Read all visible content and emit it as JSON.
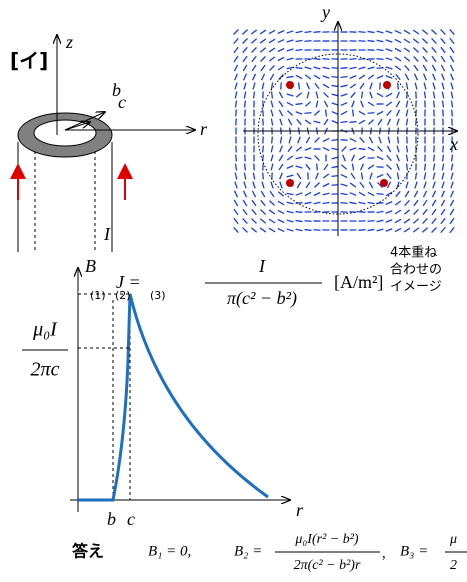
{
  "label": "[イ]",
  "cylinder": {
    "z_axis": "z",
    "r_axis": "r",
    "inner_radius": "b",
    "outer_radius": "c",
    "current": "I"
  },
  "vector_field": {
    "x_axis": "x",
    "y_axis": "y",
    "note": [
      "4本重ね",
      "合わせの",
      "イメージ"
    ]
  },
  "current_density": {
    "lhs": "J =",
    "numerator": "I",
    "denominator": "π(c² − b²)",
    "unit": "[A/m²]"
  },
  "graph": {
    "y_axis": "B",
    "x_axis": "r",
    "regions": [
      "(1)",
      "(2)",
      "(3)"
    ],
    "peak_numerator": "μ₀I",
    "peak_denominator": "2πc",
    "x_marks": [
      "b",
      "c"
    ]
  },
  "answer": {
    "label": "答え",
    "b1": "B₁ = 0,",
    "b2_lhs": "B₂ =",
    "b2_numerator": "μ₀I(r² − b²)",
    "b2_denominator": "2π(c² − b²)r",
    "b2_sep": ",",
    "b3_lhs": "B₃ =",
    "b3_numerator": "μ"
  }
}
